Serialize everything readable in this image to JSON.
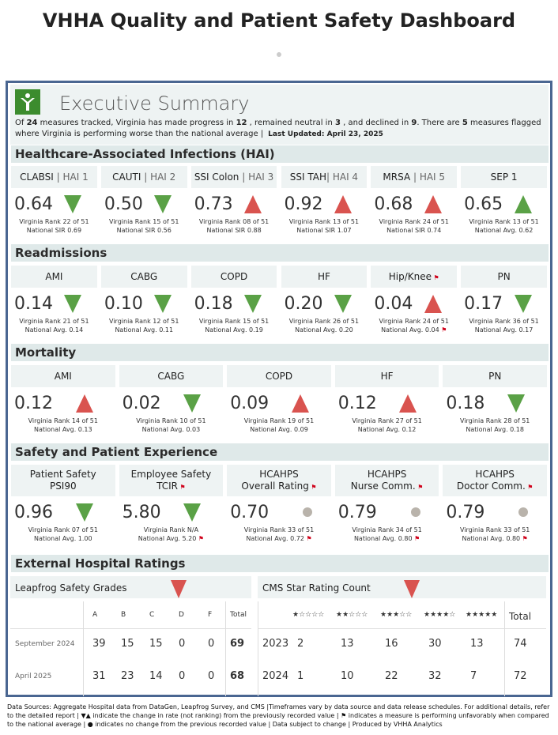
{
  "title": "VHHA Quality and Patient Safety Dashboard",
  "header": {
    "heading": "Executive Summary",
    "s1": "Of ",
    "n_total": "24",
    "s2": " measures tracked, Virginia has made progress in ",
    "n_progress": "12",
    "s3": " , remained neutral in ",
    "n_neutral": "3",
    "s4": " , and declined in ",
    "n_declined": "9",
    "s5": ". There are ",
    "n_flagged": "5",
    "s6": " measures flagged where Virginia is performing worse than the national average |",
    "updated": "Last Updated: April 23, 2025"
  },
  "colors": {
    "green": "#5aa146",
    "red": "#d9534f",
    "gray": "#b9b3ab",
    "flag": "#d0021b"
  },
  "sections": {
    "hai": "Healthcare-Associated Infections (HAI)",
    "readm": "Readmissions",
    "mort": "Mortality",
    "safety": "Safety and Patient Experience",
    "ext": "External Hospital Ratings"
  },
  "hai": [
    {
      "name": "CLABSI",
      "sub": " | HAI 1",
      "value": "0.64",
      "dir": "down",
      "color": "green",
      "rank": "Virginia Rank 22 of 51",
      "nat": "National SIR 0.69"
    },
    {
      "name": "CAUTI",
      "sub": " | HAI 2",
      "value": "0.50",
      "dir": "down",
      "color": "green",
      "rank": "Virginia Rank 15 of 51",
      "nat": "National SIR 0.56"
    },
    {
      "name": "SSI Colon",
      "sub": " | HAI 3",
      "value": "0.73",
      "dir": "up",
      "color": "red",
      "rank": "Virginia Rank 08 of 51",
      "nat": "National SIR  0.88"
    },
    {
      "name": "SSI TAH",
      "sub": "| HAI 4",
      "value": "0.92",
      "dir": "up",
      "color": "red",
      "rank": "Virginia Rank 13 of 51",
      "nat": "National SIR 1.07"
    },
    {
      "name": "MRSA",
      "sub": " | HAI 5",
      "value": "0.68",
      "dir": "up",
      "color": "red",
      "rank": "Virginia Rank 24 of 51",
      "nat": "National SIR 0.74"
    },
    {
      "name": "SEP 1",
      "sub": "",
      "value": "0.65",
      "dir": "up",
      "color": "green",
      "rank": "Virginia Rank 13 of 51",
      "nat": "National Avg. 0.62"
    }
  ],
  "readm": [
    {
      "name": "AMI",
      "value": "0.14",
      "dir": "down",
      "color": "green",
      "rank": "Virginia Rank 21 of 51",
      "nat": "National Avg. 0.14",
      "flag": false
    },
    {
      "name": "CABG",
      "value": "0.10",
      "dir": "down",
      "color": "green",
      "rank": "Virginia Rank 12 of 51",
      "nat": "National Avg. 0.11",
      "flag": false
    },
    {
      "name": "COPD",
      "value": "0.18",
      "dir": "down",
      "color": "green",
      "rank": "Virginia Rank 15 of 51",
      "nat": "National Avg. 0.19",
      "flag": false
    },
    {
      "name": "HF",
      "value": "0.20",
      "dir": "down",
      "color": "green",
      "rank": "Virginia Rank 26 of 51",
      "nat": "National Avg. 0.20",
      "flag": false
    },
    {
      "name": "Hip/Knee",
      "value": "0.04",
      "dir": "up",
      "color": "red",
      "rank": "Virginia Rank 24 of 51",
      "nat": "National Avg. 0.04",
      "flag": true
    },
    {
      "name": "PN",
      "value": "0.17",
      "dir": "down",
      "color": "green",
      "rank": "Virginia Rank 36 of 51",
      "nat": "National Avg. 0.17",
      "flag": false
    }
  ],
  "mort": [
    {
      "name": "AMI",
      "value": "0.12",
      "dir": "up",
      "color": "red",
      "rank": "Virginia Rank 14 of 51",
      "nat": "National Avg. 0.13"
    },
    {
      "name": "CABG",
      "value": "0.02",
      "dir": "down",
      "color": "green",
      "rank": "Virginia Rank 10 of 51",
      "nat": "National Avg. 0.03"
    },
    {
      "name": "COPD",
      "value": "0.09",
      "dir": "up",
      "color": "red",
      "rank": "Virginia Rank 19 of 51",
      "nat": "National Avg. 0.09"
    },
    {
      "name": "HF",
      "value": "0.12",
      "dir": "up",
      "color": "red",
      "rank": "Virginia Rank 27 of 51",
      "nat": "National Avg. 0.12"
    },
    {
      "name": "PN",
      "value": "0.18",
      "dir": "down",
      "color": "green",
      "rank": "Virginia Rank 28 of 51",
      "nat": "National Avg. 0.18"
    }
  ],
  "safety": [
    {
      "l1": "Patient Safety",
      "l2": "PSI90",
      "flag": false,
      "value": "0.96",
      "dir": "down",
      "color": "green",
      "rank": "Virginia Rank 07 of 51",
      "nat": "National Avg. 1.00",
      "natflag": false
    },
    {
      "l1": "Employee Safety",
      "l2": "TCIR",
      "flag": true,
      "value": "5.80",
      "dir": "down",
      "color": "green",
      "rank": "Virginia Rank N/A",
      "nat": "National Avg. 5.20",
      "natflag": true
    },
    {
      "l1": "HCAHPS",
      "l2": "Overall Rating",
      "flag": true,
      "value": "0.70",
      "dir": "none",
      "color": "gray",
      "rank": "Virginia Rank 33 of 51",
      "nat": "National Avg. 0.72",
      "natflag": true
    },
    {
      "l1": "HCAHPS",
      "l2": "Nurse Comm.",
      "flag": true,
      "value": "0.79",
      "dir": "none",
      "color": "gray",
      "rank": "Virginia Rank 34 of 51",
      "nat": "National Avg. 0.80",
      "natflag": true
    },
    {
      "l1": "HCAHPS",
      "l2": "Doctor Comm.",
      "flag": true,
      "value": "0.79",
      "dir": "none",
      "color": "gray",
      "rank": "Virginia Rank 33 of 51",
      "nat": "National Avg. 0.80",
      "natflag": true
    }
  ],
  "leapfrog": {
    "title": "Leapfrog Safety Grades",
    "dir": "down",
    "color": "red",
    "cols": [
      "A",
      "B",
      "C",
      "D",
      "F",
      "Total"
    ],
    "rows": [
      {
        "label": "September 2024",
        "vals": [
          "39",
          "15",
          "15",
          "0",
          "0",
          "69"
        ]
      },
      {
        "label": "April 2025",
        "vals": [
          "31",
          "23",
          "14",
          "0",
          "0",
          "68"
        ]
      }
    ]
  },
  "cms": {
    "title": "CMS Star Rating Count",
    "dir": "down",
    "color": "red",
    "cols": [
      "★☆☆☆☆",
      "★★☆☆☆",
      "★★★☆☆",
      "★★★★☆",
      "★★★★★",
      "Total"
    ],
    "rows": [
      {
        "label": "2023",
        "vals": [
          "2",
          "13",
          "16",
          "30",
          "13",
          "74"
        ]
      },
      {
        "label": "2024",
        "vals": [
          "1",
          "10",
          "22",
          "32",
          "7",
          "72"
        ]
      }
    ]
  },
  "footer": "Data Sources: Aggregate Hospital data from DataGen, Leapfrog Survey, and CMS |Timeframes vary by data source and data release schedules. For additional details, refer to the detailed report | ▼▲ indicate the change in rate (not ranking) from the previously recorded value | ⚑ indicates a measure is performing unfavorably when compared to the national average  | ● indicates no change from the previous recorded value | Data subject to change | Produced by VHHA Analytics"
}
